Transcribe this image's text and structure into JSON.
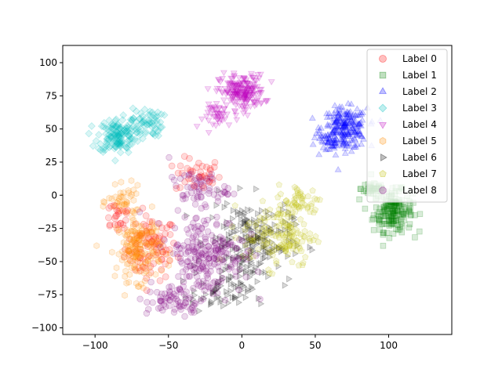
{
  "chart_data": {
    "type": "scatter",
    "title": "",
    "xlabel": "",
    "ylabel": "",
    "xlim": [
      -122,
      143
    ],
    "ylim": [
      -105,
      113
    ],
    "xticks": [
      -100,
      -50,
      0,
      50,
      100
    ],
    "yticks": [
      -100,
      -75,
      -50,
      -25,
      0,
      25,
      50,
      75,
      100
    ],
    "xtick_labels": [
      "−100",
      "−50",
      "0",
      "50",
      "100"
    ],
    "ytick_labels": [
      "−100",
      "−75",
      "−50",
      "−25",
      "0",
      "25",
      "50",
      "75",
      "100"
    ],
    "grid": false,
    "legend_position": "upper right",
    "series": [
      {
        "name": "Label 0",
        "color": "#ff0000",
        "marker": "circle",
        "clusters": [
          {
            "center": [
              -62,
              -40
            ],
            "spread": [
              16,
              22
            ],
            "count": 90
          },
          {
            "center": [
              -30,
              15
            ],
            "spread": [
              14,
              12
            ],
            "count": 40
          },
          {
            "center": [
              -85,
              -15
            ],
            "spread": [
              10,
              12
            ],
            "count": 25
          }
        ]
      },
      {
        "name": "Label 1",
        "color": "#008000",
        "marker": "square",
        "clusters": [
          {
            "center": [
              103,
              -12
            ],
            "spread": [
              12,
              14
            ],
            "count": 180
          },
          {
            "center": [
              90,
              5
            ],
            "spread": [
              8,
              6
            ],
            "count": 40
          }
        ]
      },
      {
        "name": "Label 2",
        "color": "#0000ff",
        "marker": "triangle-up",
        "clusters": [
          {
            "center": [
              70,
              50
            ],
            "spread": [
              14,
              14
            ],
            "count": 220
          },
          {
            "center": [
              60,
              40
            ],
            "spread": [
              10,
              10
            ],
            "count": 40
          }
        ]
      },
      {
        "name": "Label 3",
        "color": "#00bfbf",
        "marker": "diamond",
        "clusters": [
          {
            "center": [
              -85,
              45
            ],
            "spread": [
              12,
              12
            ],
            "count": 140
          },
          {
            "center": [
              -65,
              55
            ],
            "spread": [
              10,
              10
            ],
            "count": 60
          }
        ]
      },
      {
        "name": "Label 4",
        "color": "#bf00bf",
        "marker": "triangle-down",
        "clusters": [
          {
            "center": [
              0,
              78
            ],
            "spread": [
              14,
              12
            ],
            "count": 200
          },
          {
            "center": [
              -15,
              60
            ],
            "spread": [
              10,
              8
            ],
            "count": 40
          }
        ]
      },
      {
        "name": "Label 5",
        "color": "#ff8c00",
        "marker": "hexagon",
        "clusters": [
          {
            "center": [
              -70,
              -40
            ],
            "spread": [
              14,
              22
            ],
            "count": 180
          },
          {
            "center": [
              -80,
              -5
            ],
            "spread": [
              10,
              10
            ],
            "count": 40
          }
        ]
      },
      {
        "name": "Label 6",
        "color": "#000000",
        "marker": "triangle-right",
        "clusters": [
          {
            "center": [
              5,
              -35
            ],
            "spread": [
              26,
              28
            ],
            "count": 220
          },
          {
            "center": [
              -15,
              -75
            ],
            "spread": [
              18,
              12
            ],
            "count": 60
          }
        ]
      },
      {
        "name": "Label 7",
        "color": "#bfbf00",
        "marker": "pentagon",
        "clusters": [
          {
            "center": [
              25,
              -30
            ],
            "spread": [
              22,
              22
            ],
            "count": 150
          },
          {
            "center": [
              40,
              -5
            ],
            "spread": [
              14,
              12
            ],
            "count": 50
          }
        ]
      },
      {
        "name": "Label 8",
        "color": "#800080",
        "marker": "octagon",
        "clusters": [
          {
            "center": [
              -25,
              -45
            ],
            "spread": [
              24,
              28
            ],
            "count": 220
          },
          {
            "center": [
              -45,
              -80
            ],
            "spread": [
              18,
              10
            ],
            "count": 60
          },
          {
            "center": [
              -30,
              5
            ],
            "spread": [
              18,
              12
            ],
            "count": 60
          }
        ]
      }
    ]
  }
}
